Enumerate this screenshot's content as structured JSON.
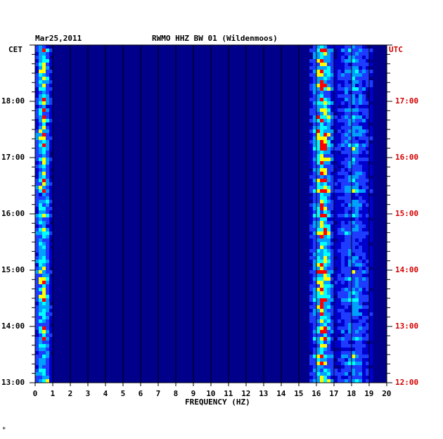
{
  "chart_data": {
    "type": "heatmap",
    "title_date": "Mar25,2011",
    "title_station": "RWMO HHZ BW 01 (Wildenmoos)",
    "left_axis_label": "CET",
    "right_axis_label": "UTC",
    "xlabel": "FREQUENCY (HZ)",
    "x_ticks": [
      "0",
      "1",
      "2",
      "3",
      "4",
      "5",
      "6",
      "7",
      "8",
      "9",
      "10",
      "11",
      "12",
      "13",
      "14",
      "15",
      "16",
      "17",
      "18",
      "19",
      "20"
    ],
    "xlim": [
      0,
      20
    ],
    "cet_ticks": [
      "18:00",
      "17:00",
      "16:00",
      "15:00",
      "14:00",
      "13:00"
    ],
    "utc_ticks": [
      "17:00",
      "16:00",
      "15:00",
      "14:00",
      "13:00",
      "12:00"
    ],
    "time_range_cet_hours": [
      13,
      19
    ],
    "grid_vertical": true,
    "colormap": [
      "#00008b",
      "#0000cd",
      "#1e3cff",
      "#00a0ff",
      "#00ffff",
      "#ffff00",
      "#ff0000"
    ],
    "features": [
      {
        "name": "low-frequency band",
        "freq_range_hz": [
          0.0,
          0.9
        ],
        "relative_intensity": 0.75
      },
      {
        "name": "16 Hz band",
        "freq_range_hz": [
          15.7,
          17.0
        ],
        "relative_intensity": 0.85
      },
      {
        "name": "17-19 Hz band",
        "freq_range_hz": [
          17.0,
          19.2
        ],
        "relative_intensity": 0.45
      }
    ]
  },
  "footer_mark": "*"
}
